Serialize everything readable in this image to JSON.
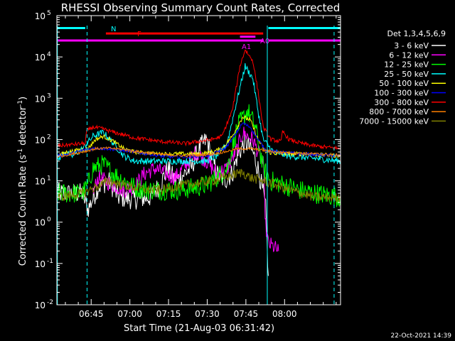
{
  "chart_data": {
    "type": "line",
    "title": "RHESSI Observing Summary Count Rates, Corrected",
    "xlabel": "Start Time (21-Aug-03 06:31:42)",
    "ylabel": "Corrected Count Rate (s",
    "ylabel_sup1": "-1",
    "ylabel_mid": " detector",
    "ylabel_sup2": "-1",
    "ylabel_end": ")",
    "yscale": "log",
    "ylim": [
      0.01,
      100000
    ],
    "xlim_min": [
      0,
      110
    ],
    "x_units": "minutes after 06:31:42",
    "x_ticks": [
      {
        "label": "06:45",
        "value": 13.3
      },
      {
        "label": "07:00",
        "value": 28.3
      },
      {
        "label": "07:15",
        "value": 43.3
      },
      {
        "label": "07:30",
        "value": 58.3
      },
      {
        "label": "07:45",
        "value": 73.3
      },
      {
        "label": "08:00",
        "value": 88.3
      }
    ],
    "y_ticks": [
      {
        "base": "10",
        "exp": "-2",
        "value": 0.01
      },
      {
        "base": "10",
        "exp": "-1",
        "value": 0.1
      },
      {
        "base": "10",
        "exp": "0",
        "value": 1
      },
      {
        "base": "10",
        "exp": "1",
        "value": 10
      },
      {
        "base": "10",
        "exp": "2",
        "value": 100
      },
      {
        "base": "10",
        "exp": "3",
        "value": 1000
      },
      {
        "base": "10",
        "exp": "4",
        "value": 10000
      },
      {
        "base": "10",
        "exp": "5",
        "value": 100000
      }
    ],
    "legend_title": "Det 1,3,4,5,6,9",
    "series": [
      {
        "name": "3 - 6 keV",
        "color": "#ffffff",
        "noise": 0.25,
        "points": [
          [
            0,
            5
          ],
          [
            10,
            5
          ],
          [
            12,
            2
          ],
          [
            16,
            7
          ],
          [
            20,
            10
          ],
          [
            24,
            4
          ],
          [
            30,
            3.5
          ],
          [
            36,
            4
          ],
          [
            40,
            8
          ],
          [
            43,
            20
          ],
          [
            46,
            10
          ],
          [
            52,
            20
          ],
          [
            55,
            60
          ],
          [
            58,
            100
          ],
          [
            60,
            40
          ],
          [
            62,
            15
          ],
          [
            65,
            10
          ],
          [
            68,
            15
          ],
          [
            70,
            40
          ],
          [
            73,
            90
          ],
          [
            76,
            50
          ],
          [
            78,
            20
          ],
          [
            80,
            5
          ],
          [
            81,
            2
          ],
          [
            82,
            0.05
          ]
        ]
      },
      {
        "name": "6 - 12 keV",
        "color": "#ff00ff",
        "noise": 0.2,
        "points": [
          [
            14,
            5
          ],
          [
            16,
            12
          ],
          [
            22,
            8
          ],
          [
            26,
            6
          ],
          [
            30,
            7
          ],
          [
            34,
            15
          ],
          [
            38,
            20
          ],
          [
            42,
            15
          ],
          [
            46,
            12
          ],
          [
            50,
            25
          ],
          [
            54,
            50
          ],
          [
            58,
            30
          ],
          [
            62,
            15
          ],
          [
            66,
            20
          ],
          [
            70,
            60
          ],
          [
            72,
            150
          ],
          [
            74,
            120
          ],
          [
            76,
            100
          ],
          [
            78,
            50
          ],
          [
            80,
            25
          ],
          [
            81,
            0.8
          ],
          [
            82,
            0.3
          ],
          [
            84,
            0.25
          ],
          [
            86,
            0.2
          ]
        ]
      },
      {
        "name": "12 - 25 keV",
        "color": "#00ff00",
        "noise": 0.25,
        "points": [
          [
            0,
            5
          ],
          [
            10,
            5
          ],
          [
            12,
            8
          ],
          [
            14,
            20
          ],
          [
            18,
            25
          ],
          [
            22,
            15
          ],
          [
            26,
            10
          ],
          [
            30,
            7
          ],
          [
            36,
            6
          ],
          [
            42,
            6
          ],
          [
            48,
            6
          ],
          [
            54,
            7
          ],
          [
            58,
            8
          ],
          [
            62,
            12
          ],
          [
            66,
            20
          ],
          [
            70,
            200
          ],
          [
            74,
            500
          ],
          [
            77,
            200
          ],
          [
            80,
            20
          ],
          [
            83,
            10
          ],
          [
            88,
            8
          ],
          [
            94,
            6
          ],
          [
            100,
            5
          ],
          [
            110,
            4
          ]
        ]
      },
      {
        "name": "25 - 50 keV",
        "color": "#00ffff",
        "noise": 0.08,
        "points": [
          [
            0,
            30
          ],
          [
            3,
            50
          ],
          [
            6,
            40
          ],
          [
            10,
            60
          ],
          [
            14,
            120
          ],
          [
            18,
            150
          ],
          [
            22,
            80
          ],
          [
            26,
            40
          ],
          [
            30,
            30
          ],
          [
            35,
            30
          ],
          [
            40,
            30
          ],
          [
            46,
            30
          ],
          [
            52,
            30
          ],
          [
            58,
            30
          ],
          [
            62,
            40
          ],
          [
            66,
            80
          ],
          [
            70,
            1000
          ],
          [
            73,
            6000
          ],
          [
            76,
            3000
          ],
          [
            78,
            500
          ],
          [
            80,
            100
          ],
          [
            84,
            50
          ],
          [
            90,
            40
          ],
          [
            100,
            35
          ],
          [
            110,
            30
          ]
        ]
      },
      {
        "name": "50 - 100 keV",
        "color": "#ffff00",
        "noise": 0.05,
        "points": [
          [
            0,
            40
          ],
          [
            4,
            50
          ],
          [
            8,
            55
          ],
          [
            12,
            60
          ],
          [
            15,
            100
          ],
          [
            18,
            120
          ],
          [
            22,
            90
          ],
          [
            26,
            60
          ],
          [
            30,
            50
          ],
          [
            40,
            45
          ],
          [
            50,
            45
          ],
          [
            56,
            45
          ],
          [
            60,
            50
          ],
          [
            64,
            60
          ],
          [
            68,
            120
          ],
          [
            72,
            350
          ],
          [
            75,
            300
          ],
          [
            78,
            100
          ],
          [
            81,
            50
          ],
          [
            86,
            45
          ],
          [
            95,
            45
          ],
          [
            110,
            40
          ]
        ]
      },
      {
        "name": "100 - 300 keV",
        "color": "#0000ff",
        "noise": 0.04,
        "points": [
          [
            0,
            40
          ],
          [
            5,
            45
          ],
          [
            10,
            55
          ],
          [
            15,
            62
          ],
          [
            20,
            60
          ],
          [
            25,
            55
          ],
          [
            30,
            50
          ],
          [
            35,
            45
          ],
          [
            40,
            40
          ],
          [
            45,
            38
          ],
          [
            50,
            38
          ],
          [
            55,
            40
          ],
          [
            60,
            42
          ],
          [
            62,
            50
          ],
          [
            65,
            60
          ],
          [
            68,
            100
          ],
          [
            72,
            250
          ],
          [
            75,
            200
          ],
          [
            78,
            100
          ],
          [
            81,
            55
          ],
          [
            85,
            50
          ],
          [
            95,
            45
          ],
          [
            110,
            40
          ]
        ]
      },
      {
        "name": "300 - 800 keV",
        "color": "#ff0000",
        "noise": 0.05,
        "points": [
          [
            0,
            70
          ],
          [
            10,
            80
          ],
          [
            11,
            80
          ],
          [
            11.5,
            160
          ],
          [
            14,
            200
          ],
          [
            18,
            180
          ],
          [
            22,
            150
          ],
          [
            26,
            130
          ],
          [
            30,
            110
          ],
          [
            35,
            100
          ],
          [
            40,
            90
          ],
          [
            45,
            85
          ],
          [
            50,
            80
          ],
          [
            55,
            90
          ],
          [
            60,
            100
          ],
          [
            64,
            120
          ],
          [
            68,
            500
          ],
          [
            71,
            6000
          ],
          [
            73,
            15000
          ],
          [
            76,
            8000
          ],
          [
            78,
            1500
          ],
          [
            80,
            200
          ],
          [
            83,
            100
          ],
          [
            87,
            90
          ],
          [
            87.5,
            160
          ],
          [
            90,
            100
          ],
          [
            95,
            80
          ],
          [
            100,
            70
          ],
          [
            110,
            60
          ]
        ]
      },
      {
        "name": "800 - 7000 keV",
        "color": "#ff8000",
        "noise": 0.03,
        "points": [
          [
            0,
            38
          ],
          [
            10,
            50
          ],
          [
            15,
            60
          ],
          [
            20,
            62
          ],
          [
            25,
            58
          ],
          [
            30,
            52
          ],
          [
            35,
            48
          ],
          [
            40,
            44
          ],
          [
            45,
            42
          ],
          [
            50,
            40
          ],
          [
            55,
            42
          ],
          [
            60,
            44
          ],
          [
            65,
            50
          ],
          [
            70,
            60
          ],
          [
            75,
            60
          ],
          [
            80,
            55
          ],
          [
            85,
            50
          ],
          [
            90,
            48
          ],
          [
            100,
            45
          ],
          [
            110,
            42
          ]
        ]
      },
      {
        "name": "7000 - 15000 keV",
        "color": "#808000",
        "noise": 0.12,
        "points": [
          [
            0,
            4
          ],
          [
            10,
            5
          ],
          [
            15,
            7
          ],
          [
            20,
            10
          ],
          [
            25,
            8
          ],
          [
            30,
            7
          ],
          [
            35,
            6
          ],
          [
            40,
            6
          ],
          [
            45,
            7
          ],
          [
            50,
            8
          ],
          [
            55,
            9
          ],
          [
            60,
            10
          ],
          [
            65,
            12
          ],
          [
            70,
            15
          ],
          [
            72,
            16
          ],
          [
            75,
            12
          ],
          [
            80,
            10
          ],
          [
            85,
            8
          ],
          [
            90,
            6
          ],
          [
            95,
            5
          ],
          [
            100,
            4
          ],
          [
            110,
            4
          ]
        ]
      }
    ],
    "annotations": {
      "N": {
        "label": "N",
        "segments": [
          [
            0,
            11
          ],
          [
            82,
            110
          ]
        ],
        "y": 50000,
        "color": "#00ffff"
      },
      "F": {
        "label": "F",
        "segments": [
          [
            19,
            80
          ]
        ],
        "y": 37000,
        "color": "#ff0000"
      },
      "A0": {
        "label": "A0",
        "segments": [
          [
            71,
            77
          ]
        ],
        "y": 31000,
        "color": "#ff00ff"
      },
      "A1": {
        "label": "A1",
        "segments": [
          [
            0,
            80
          ],
          [
            82,
            110
          ]
        ],
        "y": 25000,
        "color": "#ff00ff"
      }
    },
    "vertical_lines": [
      {
        "x": 0.2,
        "style": "solid",
        "color": "#00ffff"
      },
      {
        "x": 11.7,
        "style": "dashed",
        "color": "#00ffff"
      },
      {
        "x": 81.6,
        "style": "solid",
        "color": "#00ffff"
      },
      {
        "x": 107.5,
        "style": "dashed",
        "color": "#00ffff"
      }
    ]
  },
  "footer": {
    "timestamp": "22-Oct-2021 14:39"
  }
}
